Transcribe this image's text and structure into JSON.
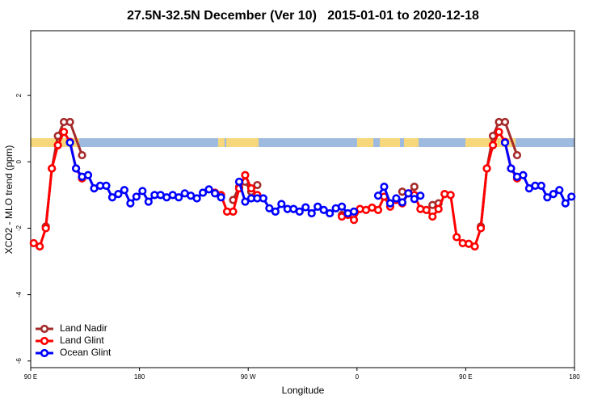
{
  "chart_data": {
    "type": "line",
    "title": "27.5N-32.5N December (Ver 10)   2015-01-01 to 2020-12-18",
    "x_label": "Longitude",
    "y_label": "XCO2 - MLO trend (ppm)",
    "xlim": [
      90,
      540
    ],
    "ylim": [
      -6.2,
      3.95
    ],
    "xticks": [
      {
        "value": 90,
        "label": "90 E"
      },
      180,
      {
        "value": 270,
        "label": "90 W"
      },
      {
        "value": 360,
        "label": "0"
      },
      {
        "value": 450,
        "label": "90 E"
      },
      {
        "value": 540,
        "label": "180"
      }
    ],
    "yticks": [
      -6,
      -4,
      -2,
      0,
      2
    ],
    "legend": "bottomleft",
    "series": [
      {
        "name": "Land Nadir",
        "color": "#a52a2a",
        "x": [
          102.5,
          107.5,
          112.5,
          117.5,
          122.5,
          132.5,
          137.5,
          257.5,
          262.5,
          267.5,
          272.5,
          277.5,
          282.5,
          347.5,
          352.5,
          397.5,
          402.5,
          407.5,
          412.5,
          422.5,
          427.5,
          432.5,
          462.5,
          467.5,
          472.5,
          477.5,
          482.5,
          492.5
        ],
        "values": [
          -1.95,
          -0.2,
          0.78,
          1.2,
          1.2,
          0.2,
          null,
          -1.15,
          -0.75,
          -0.6,
          -0.9,
          -0.7,
          null,
          -1.6,
          null,
          -0.9,
          -0.95,
          -0.75,
          null,
          -1.3,
          -1.25,
          null,
          -1.95,
          -0.2,
          0.78,
          1.2,
          1.2,
          0.2
        ]
      },
      {
        "name": "Land Glint",
        "color": "#ff0000",
        "x": [
          92.5,
          97.5,
          102.5,
          107.5,
          112.5,
          117.5,
          122.5,
          127.5,
          132.5,
          137.5,
          242.5,
          247.5,
          252.5,
          257.5,
          262.5,
          267.5,
          272.5,
          277.5,
          282.5,
          347.5,
          352.5,
          357.5,
          362.5,
          367.5,
          372.5,
          377.5,
          382.5,
          387.5,
          392.5,
          397.5,
          402.5,
          407.5,
          412.5,
          417.5,
          422.5,
          427.5,
          432.5,
          437.5,
          442.5,
          447.5,
          452.5,
          457.5,
          462.5,
          467.5,
          472.5,
          477.5,
          482.5,
          487.5,
          492.5
        ],
        "values": [
          -2.45,
          -2.55,
          -2.0,
          -0.2,
          0.5,
          0.9,
          0.6,
          -0.2,
          -0.5,
          null,
          -0.93,
          -1.0,
          -1.5,
          -1.5,
          -0.8,
          -0.4,
          -0.8,
          -1.0,
          null,
          -1.65,
          -1.6,
          -1.75,
          -1.42,
          -1.45,
          -1.38,
          -1.45,
          -1.05,
          -1.35,
          -1.15,
          -1.25,
          -0.95,
          -1.0,
          -1.42,
          -1.45,
          -1.65,
          -1.42,
          -0.97,
          -1.0,
          -2.27,
          -2.45,
          -2.47,
          -2.55,
          -2.0,
          -0.2,
          0.5,
          0.9,
          0.6,
          -0.2,
          -0.5
        ]
      },
      {
        "name": "Ocean Glint",
        "color": "#0000ff",
        "x": [
          122.5,
          127.5,
          132.5,
          137.5,
          142.5,
          147.5,
          152.5,
          157.5,
          162.5,
          167.5,
          172.5,
          177.5,
          182.5,
          187.5,
          192.5,
          197.5,
          202.5,
          207.5,
          212.5,
          217.5,
          222.5,
          227.5,
          232.5,
          237.5,
          242.5,
          247.5,
          252.5,
          262.5,
          267.5,
          272.5,
          277.5,
          282.5,
          287.5,
          292.5,
          297.5,
          302.5,
          307.5,
          312.5,
          317.5,
          322.5,
          327.5,
          332.5,
          337.5,
          342.5,
          347.5,
          352.5,
          357.5,
          362.5,
          377.5,
          382.5,
          387.5,
          392.5,
          397.5,
          402.5,
          407.5,
          412.5,
          417.5,
          482.5,
          487.5,
          492.5,
          497.5,
          502.5,
          507.5,
          512.5,
          517.5,
          522.5,
          527.5,
          532.5,
          537.5
        ],
        "values": [
          0.58,
          -0.2,
          -0.45,
          -0.4,
          -0.8,
          -0.72,
          -0.72,
          -1.07,
          -0.97,
          -0.85,
          -1.25,
          -1.05,
          -0.88,
          -1.2,
          -1.0,
          -1.0,
          -1.07,
          -1.0,
          -1.07,
          -0.95,
          -1.02,
          -1.1,
          -0.93,
          -0.83,
          -0.95,
          -1.07,
          null,
          -0.6,
          -1.2,
          -1.1,
          -1.1,
          -1.1,
          -1.4,
          -1.5,
          -1.27,
          -1.42,
          -1.42,
          -1.5,
          -1.37,
          -1.55,
          -1.35,
          -1.45,
          -1.55,
          -1.4,
          -1.35,
          -1.55,
          -1.5,
          null,
          -1.02,
          -0.75,
          -1.25,
          -1.1,
          -1.22,
          -0.95,
          -1.12,
          -1.02,
          null,
          0.58,
          -0.2,
          -0.45,
          -0.4,
          -0.8,
          -0.72,
          -0.72,
          -1.07,
          -0.97,
          -0.85,
          -1.25,
          -1.05
        ]
      }
    ]
  }
}
